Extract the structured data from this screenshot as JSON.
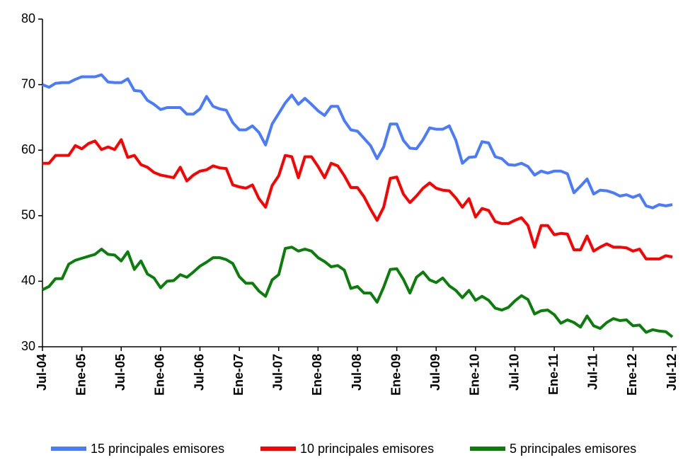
{
  "chart_data": {
    "type": "line",
    "categories": [
      "Jul-04",
      null,
      null,
      null,
      null,
      null,
      "Ene-05",
      null,
      null,
      null,
      null,
      null,
      "Jul-05",
      null,
      null,
      null,
      null,
      null,
      "Ene-06",
      null,
      null,
      null,
      null,
      null,
      "Jul-06",
      null,
      null,
      null,
      null,
      null,
      "Ene-07",
      null,
      null,
      null,
      null,
      null,
      "Jul-07",
      null,
      null,
      null,
      null,
      null,
      "Ene-08",
      null,
      null,
      null,
      null,
      null,
      "Jul-08",
      null,
      null,
      null,
      null,
      null,
      "Ene-09",
      null,
      null,
      null,
      null,
      null,
      "Jul-09",
      null,
      null,
      null,
      null,
      null,
      "Ene-10",
      null,
      null,
      null,
      null,
      null,
      "Jul-10",
      null,
      null,
      null,
      null,
      null,
      "Ene-11",
      null,
      null,
      null,
      null,
      null,
      "Jul-11",
      null,
      null,
      null,
      null,
      null,
      "Ene-12",
      null,
      null,
      null,
      null,
      null,
      "Jul-12"
    ],
    "series": [
      {
        "name": "15 principales emisores",
        "color": "#4a7bff",
        "values": [
          70,
          69.6,
          70.2,
          70.3,
          70.3,
          70.8,
          71.2,
          71.2,
          71.2,
          71.5,
          70.4,
          70.3,
          70.3,
          70.9,
          69.1,
          69.0,
          67.6,
          67.0,
          66.2,
          66.5,
          66.5,
          66.5,
          65.5,
          65.5,
          66.3,
          68.2,
          66.7,
          66.3,
          66.1,
          64.2,
          63.1,
          63.1,
          63.7,
          62.7,
          60.8,
          64.0,
          65.6,
          67.2,
          68.4,
          67.0,
          67.9,
          67.0,
          66.0,
          65.3,
          66.7,
          66.7,
          64.5,
          63.1,
          62.9,
          61.8,
          60.7,
          58.7,
          60.5,
          64.0,
          64.0,
          61.5,
          60.3,
          60.2,
          61.6,
          63.4,
          63.2,
          63.2,
          63.7,
          61.5,
          58.0,
          58.9,
          59.0,
          61.3,
          61.1,
          59.0,
          58.7,
          57.8,
          57.7,
          58.0,
          57.5,
          56.2,
          56.8,
          56.5,
          56.8,
          56.8,
          56.4,
          53.5,
          54.5,
          55.6,
          53.3,
          53.9,
          53.8,
          53.5,
          53.0,
          53.2,
          52.8,
          53.2,
          51.5,
          51.2,
          51.7,
          51.5,
          51.7
        ]
      },
      {
        "name": "10 principales emisores",
        "color": "#ff0000",
        "values": [
          58.0,
          58.0,
          59.2,
          59.2,
          59.2,
          60.7,
          60.2,
          61.0,
          61.4,
          60.1,
          60.5,
          60.1,
          61.6,
          58.9,
          59.2,
          57.8,
          57.4,
          56.6,
          56.2,
          56.0,
          55.8,
          57.4,
          55.3,
          56.2,
          56.8,
          57.0,
          57.6,
          57.3,
          57.2,
          54.7,
          54.4,
          54.2,
          54.7,
          52.6,
          51.3,
          54.6,
          56.1,
          59.2,
          59.0,
          55.8,
          59.0,
          59.0,
          57.5,
          55.8,
          58.0,
          57.6,
          56.1,
          54.3,
          54.3,
          52.9,
          51.0,
          49.3,
          51.3,
          55.7,
          55.9,
          53.3,
          52.0,
          53.0,
          54.2,
          55.0,
          54.2,
          53.9,
          53.8,
          52.7,
          51.3,
          52.6,
          49.8,
          51.1,
          50.8,
          49.1,
          48.8,
          48.8,
          49.3,
          49.7,
          48.5,
          45.2,
          48.5,
          48.5,
          47.1,
          47.3,
          47.2,
          44.8,
          44.8,
          46.9,
          44.6,
          45.2,
          45.7,
          45.2,
          45.2,
          45.1,
          44.6,
          44.9,
          43.4,
          43.4,
          43.4,
          43.9,
          43.7
        ]
      },
      {
        "name": "5 principales emisores",
        "color": "#0a7d0a",
        "values": [
          38.7,
          39.2,
          40.4,
          40.4,
          42.6,
          43.2,
          43.5,
          43.8,
          44.1,
          44.9,
          44.1,
          44.0,
          43.1,
          44.5,
          41.8,
          43.1,
          41.1,
          40.5,
          39.0,
          40.0,
          40.1,
          41.0,
          40.6,
          41.4,
          42.3,
          42.9,
          43.6,
          43.6,
          43.3,
          42.7,
          40.7,
          39.7,
          39.7,
          38.5,
          37.7,
          40.2,
          41.0,
          45.0,
          45.2,
          44.6,
          44.9,
          44.6,
          43.6,
          43.0,
          42.2,
          42.4,
          41.7,
          38.9,
          39.2,
          38.2,
          38.2,
          36.8,
          39.1,
          41.8,
          41.9,
          40.3,
          38.2,
          40.6,
          41.4,
          40.2,
          39.8,
          40.5,
          39.3,
          38.6,
          37.5,
          38.6,
          37.1,
          37.7,
          37.1,
          35.9,
          35.6,
          36.0,
          37.0,
          37.8,
          37.2,
          35.0,
          35.5,
          35.6,
          34.9,
          33.6,
          34.1,
          33.7,
          33.0,
          34.7,
          33.2,
          32.8,
          33.7,
          34.3,
          34.0,
          34.1,
          33.2,
          33.3,
          32.2,
          32.6,
          32.4,
          32.3,
          31.5
        ]
      }
    ],
    "ylim": [
      30,
      80
    ],
    "yticks": [
      30,
      40,
      50,
      60,
      70,
      80
    ],
    "grid": false,
    "legend": "bottom"
  }
}
